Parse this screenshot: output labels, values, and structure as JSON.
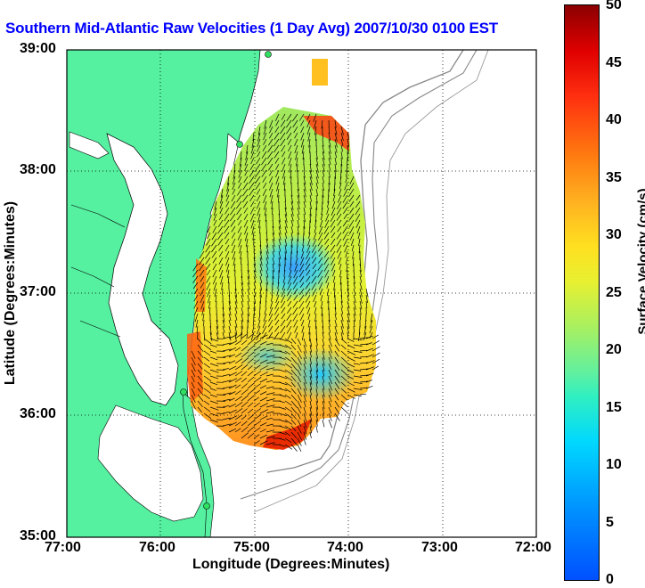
{
  "title": "Southern Mid-Atlantic Raw Velocities (1 Day Avg) 2007/10/30 0100 EST",
  "map": {
    "xlabel": "Longitude (Degrees:Minutes)",
    "ylabel": "Latitude (Degrees:Minutes)",
    "x_ticks": [
      "77:00",
      "76:00",
      "75:00",
      "74:00",
      "73:00",
      "72:00"
    ],
    "y_ticks": [
      "39:00",
      "38:00",
      "37:00",
      "36:00",
      "35:00"
    ],
    "land_color": "#55f0a0",
    "grid": "dotted"
  },
  "colorbar": {
    "label": "Surface Velocity (cm/s)",
    "ticks": [
      "50",
      "45",
      "40",
      "35",
      "30",
      "25",
      "20",
      "15",
      "10",
      "5",
      "0"
    ]
  }
}
